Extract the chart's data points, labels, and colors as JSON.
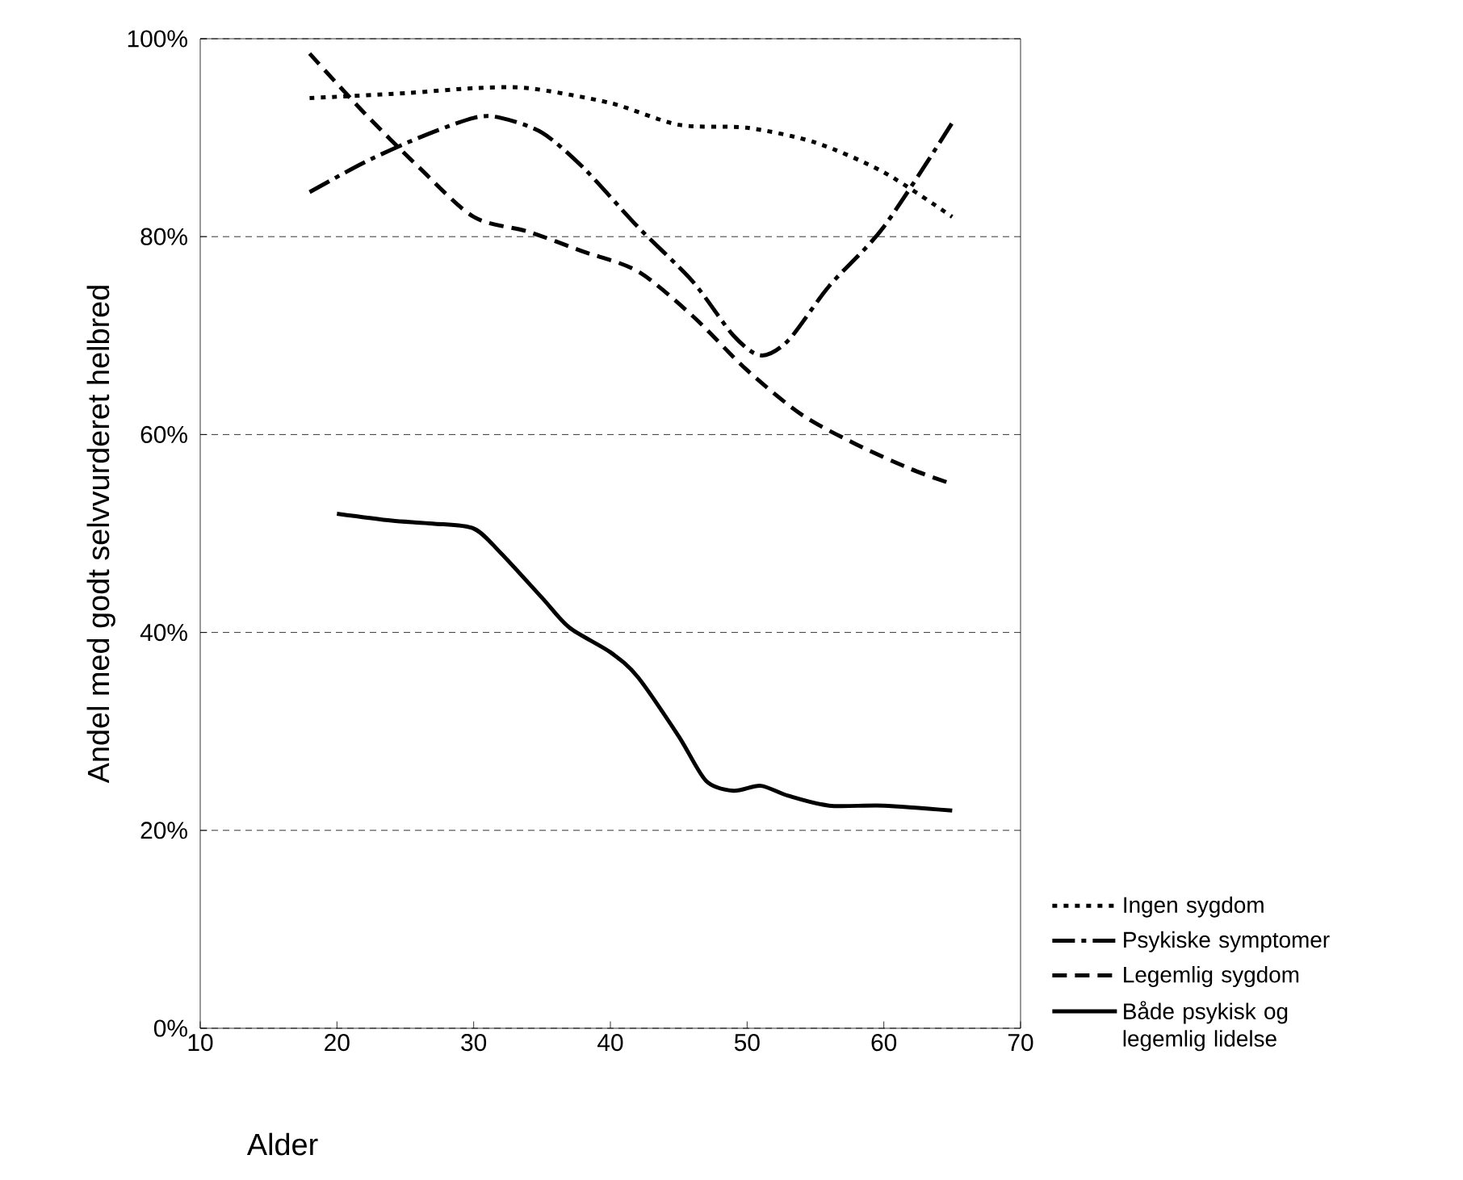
{
  "chart_data": {
    "type": "line",
    "xlabel": "Alder",
    "ylabel": "Andel med godt selvvurderet helbred",
    "xlim": [
      10,
      70
    ],
    "xticks": [
      10,
      20,
      30,
      40,
      50,
      60,
      70
    ],
    "ylim": [
      0,
      100
    ],
    "yticks": [
      {
        "value": 0,
        "label": "0%"
      },
      {
        "value": 20,
        "label": "20%"
      },
      {
        "value": 40,
        "label": "40%"
      },
      {
        "value": 60,
        "label": "60%"
      },
      {
        "value": 80,
        "label": "80%"
      },
      {
        "value": 100,
        "label": "100%"
      }
    ],
    "grid": "y",
    "legend": "right",
    "marker": "none",
    "series": [
      {
        "name": "Ingen sygdom",
        "color": "#000000",
        "line_style": "dotted",
        "x": [
          18,
          25,
          30,
          34,
          40,
          45,
          50,
          55,
          60,
          65
        ],
        "values": [
          94,
          94.5,
          95,
          95,
          93.5,
          91.3,
          91,
          89.5,
          86.5,
          82
        ]
      },
      {
        "name": "Psykiske symptomer",
        "color": "#000000",
        "line_style": "dashdot",
        "x": [
          18,
          22,
          26,
          30,
          32,
          35,
          38,
          42,
          46,
          49,
          51,
          53,
          56,
          60,
          65
        ],
        "values": [
          84.5,
          87.5,
          90,
          92,
          92,
          90.5,
          87,
          81,
          75.5,
          70,
          68,
          69.5,
          75,
          81,
          91.5
        ]
      },
      {
        "name": "Legemlig sygdom",
        "color": "#000000",
        "line_style": "dashed",
        "x": [
          18,
          22,
          26,
          30,
          34,
          38,
          42,
          46,
          50,
          54,
          58,
          62,
          65
        ],
        "values": [
          98.5,
          92.5,
          87,
          82,
          80.5,
          78.5,
          76.5,
          72,
          66.5,
          62,
          59,
          56.5,
          55
        ]
      },
      {
        "name": "Både psykisk og legemlig lidelse",
        "color": "#000000",
        "line_style": "solid",
        "x": [
          20,
          24,
          27,
          30,
          32,
          35,
          37,
          40,
          42,
          45,
          47,
          49,
          51,
          53,
          56,
          60,
          65
        ],
        "values": [
          52,
          51.3,
          51,
          50.5,
          48,
          43.5,
          40.5,
          38,
          35.5,
          29.5,
          25,
          24,
          24.5,
          23.5,
          22.5,
          22.5,
          22
        ]
      }
    ]
  }
}
